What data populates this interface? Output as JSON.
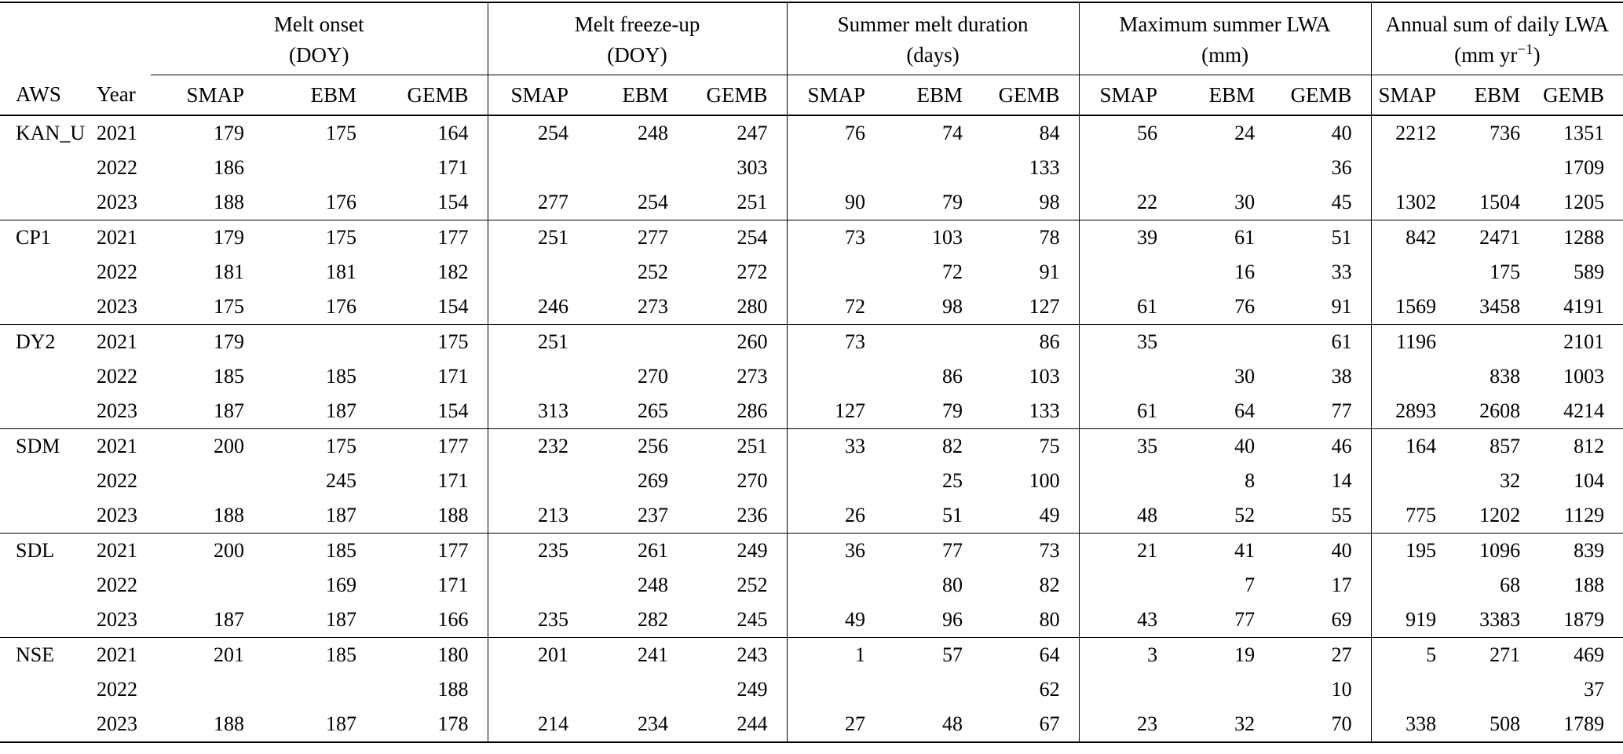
{
  "table": {
    "corner": {
      "aws_label": "AWS",
      "year_label": "Year"
    },
    "groups": [
      {
        "title": "Melt onset",
        "unit": "(DOY)"
      },
      {
        "title": "Melt freeze-up",
        "unit": "(DOY)"
      },
      {
        "title": "Summer melt duration",
        "unit": "(days)"
      },
      {
        "title": "Maximum summer LWA",
        "unit": "(mm)"
      },
      {
        "title": "Annual sum of daily LWA",
        "unit_pre": "(mm yr",
        "unit_sup": "−1",
        "unit_post": ")"
      }
    ],
    "sub_headers": [
      "SMAP",
      "EBM",
      "GEMB"
    ],
    "stations": [
      "KAN_U",
      "CP1",
      "DY2",
      "SDM",
      "SDL",
      "NSE"
    ],
    "rows": [
      {
        "aws": "KAN_U",
        "year": "2021",
        "values": [
          "179",
          "175",
          "164",
          "254",
          "248",
          "247",
          "76",
          "74",
          "84",
          "56",
          "24",
          "40",
          "2212",
          "736",
          "1351"
        ]
      },
      {
        "aws": "",
        "year": "2022",
        "values": [
          "186",
          "",
          "171",
          "",
          "",
          "303",
          "",
          "",
          "133",
          "",
          "",
          "36",
          "",
          "",
          "1709"
        ]
      },
      {
        "aws": "",
        "year": "2023",
        "values": [
          "188",
          "176",
          "154",
          "277",
          "254",
          "251",
          "90",
          "79",
          "98",
          "22",
          "30",
          "45",
          "1302",
          "1504",
          "1205"
        ]
      },
      {
        "aws": "CP1",
        "year": "2021",
        "values": [
          "179",
          "175",
          "177",
          "251",
          "277",
          "254",
          "73",
          "103",
          "78",
          "39",
          "61",
          "51",
          "842",
          "2471",
          "1288"
        ]
      },
      {
        "aws": "",
        "year": "2022",
        "values": [
          "181",
          "181",
          "182",
          "",
          "252",
          "272",
          "",
          "72",
          "91",
          "",
          "16",
          "33",
          "",
          "175",
          "589"
        ]
      },
      {
        "aws": "",
        "year": "2023",
        "values": [
          "175",
          "176",
          "154",
          "246",
          "273",
          "280",
          "72",
          "98",
          "127",
          "61",
          "76",
          "91",
          "1569",
          "3458",
          "4191"
        ]
      },
      {
        "aws": "DY2",
        "year": "2021",
        "values": [
          "179",
          "",
          "175",
          "251",
          "",
          "260",
          "73",
          "",
          "86",
          "35",
          "",
          "61",
          "1196",
          "",
          "2101"
        ]
      },
      {
        "aws": "",
        "year": "2022",
        "values": [
          "185",
          "185",
          "171",
          "",
          "270",
          "273",
          "",
          "86",
          "103",
          "",
          "30",
          "38",
          "",
          "838",
          "1003"
        ]
      },
      {
        "aws": "",
        "year": "2023",
        "values": [
          "187",
          "187",
          "154",
          "313",
          "265",
          "286",
          "127",
          "79",
          "133",
          "61",
          "64",
          "77",
          "2893",
          "2608",
          "4214"
        ]
      },
      {
        "aws": "SDM",
        "year": "2021",
        "values": [
          "200",
          "175",
          "177",
          "232",
          "256",
          "251",
          "33",
          "82",
          "75",
          "35",
          "40",
          "46",
          "164",
          "857",
          "812"
        ]
      },
      {
        "aws": "",
        "year": "2022",
        "values": [
          "",
          "245",
          "171",
          "",
          "269",
          "270",
          "",
          "25",
          "100",
          "",
          "8",
          "14",
          "",
          "32",
          "104"
        ]
      },
      {
        "aws": "",
        "year": "2023",
        "values": [
          "188",
          "187",
          "188",
          "213",
          "237",
          "236",
          "26",
          "51",
          "49",
          "48",
          "52",
          "55",
          "775",
          "1202",
          "1129"
        ]
      },
      {
        "aws": "SDL",
        "year": "2021",
        "values": [
          "200",
          "185",
          "177",
          "235",
          "261",
          "249",
          "36",
          "77",
          "73",
          "21",
          "41",
          "40",
          "195",
          "1096",
          "839"
        ]
      },
      {
        "aws": "",
        "year": "2022",
        "values": [
          "",
          "169",
          "171",
          "",
          "248",
          "252",
          "",
          "80",
          "82",
          "",
          "7",
          "17",
          "",
          "68",
          "188"
        ]
      },
      {
        "aws": "",
        "year": "2023",
        "values": [
          "187",
          "187",
          "166",
          "235",
          "282",
          "245",
          "49",
          "96",
          "80",
          "43",
          "77",
          "69",
          "919",
          "3383",
          "1879"
        ]
      },
      {
        "aws": "NSE",
        "year": "2021",
        "values": [
          "201",
          "185",
          "180",
          "201",
          "241",
          "243",
          "1",
          "57",
          "64",
          "3",
          "19",
          "27",
          "5",
          "271",
          "469"
        ]
      },
      {
        "aws": "",
        "year": "2022",
        "values": [
          "",
          "",
          "188",
          "",
          "",
          "249",
          "",
          "",
          "62",
          "",
          "",
          "10",
          "",
          "",
          "37"
        ]
      },
      {
        "aws": "",
        "year": "2023",
        "values": [
          "188",
          "187",
          "178",
          "214",
          "234",
          "244",
          "27",
          "48",
          "67",
          "23",
          "32",
          "70",
          "338",
          "508",
          "1789"
        ]
      }
    ]
  }
}
